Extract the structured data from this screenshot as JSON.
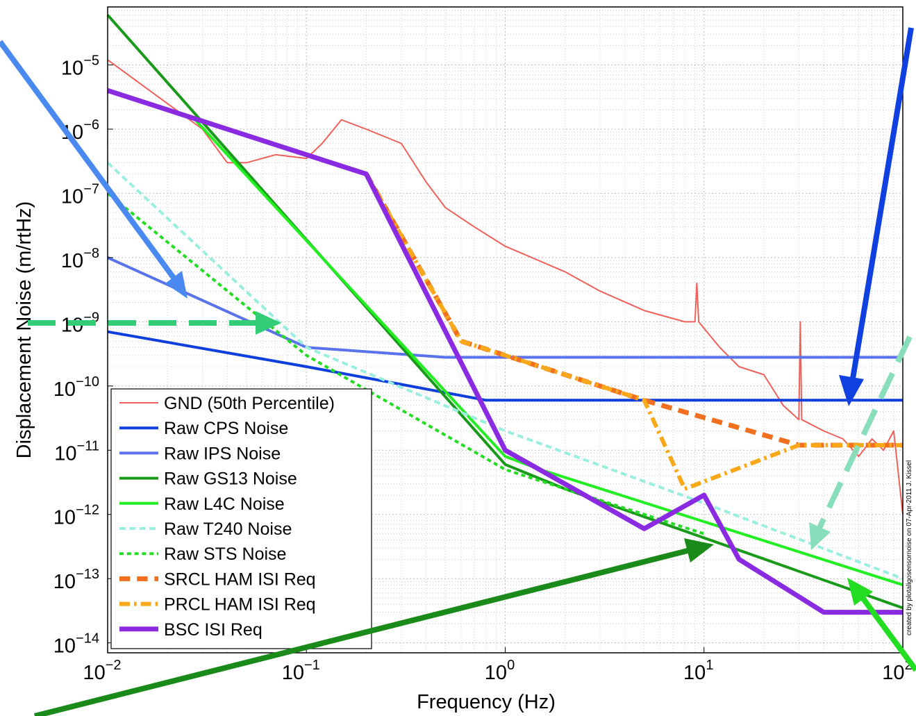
{
  "chart_data": {
    "type": "line",
    "xlabel": "Frequency (Hz)",
    "ylabel": "Displacement Noise (m/rtHz)",
    "annotation": "created by plotaligosensornoise on 07-Apr-2011   J. Kissel",
    "log_x": true,
    "log_y": true,
    "grid": true,
    "minor_grid": true,
    "legend": "lower left",
    "xlim": [
      0.01,
      100
    ],
    "ylim": [
      7e-15,
      8e-05
    ],
    "xticks": [
      {
        "value": 0.01,
        "label": "10",
        "exponent": "−2"
      },
      {
        "value": 0.1,
        "label": "10",
        "exponent": "−1"
      },
      {
        "value": 1,
        "label": "10",
        "exponent": "0"
      },
      {
        "value": 10,
        "label": "10",
        "exponent": "1"
      },
      {
        "value": 100,
        "label": "10",
        "exponent": "2"
      }
    ],
    "yticks": [
      {
        "value": 1e-14,
        "label": "10",
        "exponent": "−14"
      },
      {
        "value": 1e-13,
        "label": "10",
        "exponent": "−13"
      },
      {
        "value": 1e-12,
        "label": "10",
        "exponent": "−12"
      },
      {
        "value": 1e-11,
        "label": "10",
        "exponent": "−11"
      },
      {
        "value": 1e-10,
        "label": "10",
        "exponent": "−10"
      },
      {
        "value": 1e-09,
        "label": "10",
        "exponent": "−9"
      },
      {
        "value": 1e-08,
        "label": "10",
        "exponent": "−8"
      },
      {
        "value": 1e-07,
        "label": "10",
        "exponent": "−7"
      },
      {
        "value": 1e-06,
        "label": "10",
        "exponent": "−6"
      },
      {
        "value": 1e-05,
        "label": "10",
        "exponent": "−5"
      }
    ],
    "series": [
      {
        "name": "GND (50th Percentile)",
        "color": "#f0605a",
        "linestyle": "solid",
        "linewidth": 2,
        "x": [
          0.01,
          0.02,
          0.03,
          0.04,
          0.05,
          0.07,
          0.1,
          0.12,
          0.15,
          0.2,
          0.3,
          0.4,
          0.5,
          0.7,
          1,
          2,
          3,
          5,
          8,
          9,
          9.2,
          9.4,
          12,
          15,
          20,
          25,
          30,
          30.5,
          31,
          40,
          50,
          60,
          70,
          80,
          90,
          100
        ],
        "values": [
          1.2e-05,
          2.5e-06,
          1e-06,
          3e-07,
          3e-07,
          4e-07,
          3.5e-07,
          6e-07,
          1.4e-06,
          1e-06,
          6e-07,
          1.5e-07,
          6e-08,
          3e-08,
          1.5e-08,
          6e-09,
          3e-09,
          1.5e-09,
          1e-09,
          1e-09,
          4e-09,
          1e-09,
          4e-10,
          2e-10,
          1.5e-10,
          5e-11,
          3e-11,
          1e-09,
          3e-11,
          2e-11,
          1.5e-11,
          8e-12,
          1.5e-11,
          1e-11,
          2e-11,
          1e-12
        ]
      },
      {
        "name": "Raw CPS Noise",
        "color": "#0e3fdc",
        "linestyle": "solid",
        "linewidth": 4,
        "x": [
          0.01,
          0.1,
          0.8,
          100
        ],
        "values": [
          7e-10,
          2e-10,
          6e-11,
          6e-11
        ]
      },
      {
        "name": "Raw IPS Noise",
        "color": "#5a72ea",
        "linestyle": "solid",
        "linewidth": 4,
        "x": [
          0.01,
          0.1,
          0.5,
          100
        ],
        "values": [
          1e-08,
          4e-10,
          2.8e-10,
          2.8e-10
        ]
      },
      {
        "name": "Raw GS13 Noise",
        "color": "#1a9a1a",
        "linestyle": "solid",
        "linewidth": 4,
        "x": [
          0.01,
          1,
          2,
          100
        ],
        "values": [
          6e-05,
          6e-12,
          2.5e-12,
          3.5e-14
        ]
      },
      {
        "name": "Raw L4C Noise",
        "color": "#22ee22",
        "linestyle": "solid",
        "linewidth": 4,
        "x": [
          0.027,
          1,
          1.5,
          100
        ],
        "values": [
          1.5e-06,
          8e-12,
          5e-12,
          8e-14
        ]
      },
      {
        "name": "Raw T240 Noise",
        "color": "#99eedd",
        "linestyle": "dashed",
        "linewidth": 4,
        "x": [
          0.01,
          0.1,
          1,
          10,
          100
        ],
        "values": [
          3e-07,
          4e-10,
          2e-11,
          1.5e-12,
          1e-13
        ]
      },
      {
        "name": "Raw STS Noise",
        "color": "#22dd22",
        "linestyle": "dotted",
        "linewidth": 4,
        "x": [
          0.01,
          0.1,
          1,
          10
        ],
        "values": [
          1e-07,
          3e-10,
          5e-12,
          5e-13
        ]
      },
      {
        "name": "SRCL HAM ISI Req",
        "color": "#f07020",
        "linestyle": "dashed",
        "linewidth": 7,
        "x": [
          0.2,
          0.6,
          5,
          30,
          100
        ],
        "values": [
          2e-07,
          5e-10,
          6e-11,
          1.2e-11,
          1.2e-11
        ]
      },
      {
        "name": "PRCL HAM ISI Req",
        "color": "#f8a818",
        "linestyle": "dashdot",
        "linewidth": 6,
        "x": [
          0.2,
          0.6,
          5,
          8,
          30,
          100
        ],
        "values": [
          2e-07,
          5e-10,
          6e-11,
          2.5e-12,
          1.2e-11,
          1.2e-11
        ]
      },
      {
        "name": "BSC ISI Req",
        "color": "#8a2be2",
        "linestyle": "solid",
        "linewidth": 7,
        "x": [
          0.01,
          0.2,
          1,
          5,
          10,
          15,
          40,
          100
        ],
        "values": [
          4e-06,
          2e-07,
          1e-11,
          6e-13,
          2e-12,
          2e-13,
          3e-14,
          3e-14
        ]
      }
    ]
  }
}
